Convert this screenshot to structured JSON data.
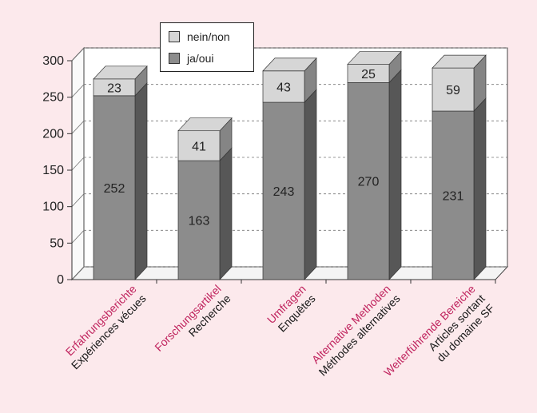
{
  "chart_data": {
    "type": "bar",
    "stacked": true,
    "style": "3d",
    "categories": [
      {
        "line1": "Erfahrungsberichte",
        "line2": "Expériences vécues",
        "line3": ""
      },
      {
        "line1": "Forschungsartikel",
        "line2": "Recherche",
        "line3": ""
      },
      {
        "line1": "Umfragen",
        "line2": "Enquêtes",
        "line3": ""
      },
      {
        "line1": "Alternative Methoden",
        "line2": "Méthodes alternatives",
        "line3": ""
      },
      {
        "line1": "Weiterführende Bereiche",
        "line2": "Articles sortant",
        "line3": "du domaine SF"
      }
    ],
    "series": [
      {
        "name": "ja/oui",
        "values": [
          252,
          163,
          243,
          270,
          231
        ],
        "color": "#8c8c8c"
      },
      {
        "name": "nein/non",
        "values": [
          23,
          41,
          43,
          25,
          59
        ],
        "color": "#d6d6d6"
      }
    ],
    "ylim": [
      0,
      300
    ],
    "yticks": [
      0,
      50,
      100,
      150,
      200,
      250,
      300
    ],
    "grid": true,
    "legend_position": "top-left"
  },
  "colors": {
    "background": "#fce9ec",
    "label_german": "#c0245e",
    "label_french": "#1a1a1a"
  }
}
